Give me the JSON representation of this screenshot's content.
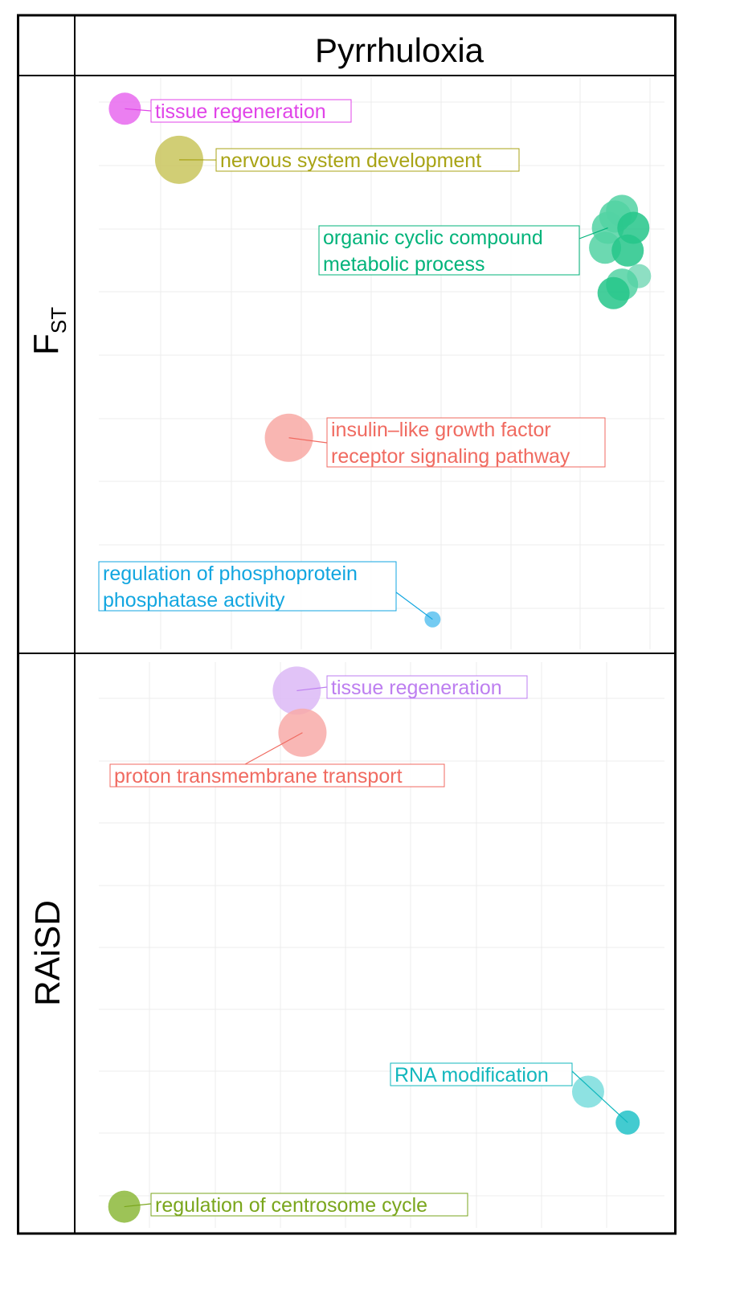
{
  "chart_data": {
    "type": "scatter",
    "title": "Pyrrhuloxia",
    "facets": [
      {
        "strip_label": "F",
        "strip_subscript": "ST",
        "xlim": [
          0,
          100
        ],
        "ylim": [
          0,
          100
        ],
        "grid": true,
        "points": [
          {
            "x": 4.6,
            "y": 95.0,
            "size": 3,
            "color": "#e769ee",
            "cluster": "tissue regeneration"
          },
          {
            "x": 14.2,
            "y": 86.0,
            "size": 5,
            "color": "#c9c55d",
            "cluster": "nervous system development"
          },
          {
            "x": 92.5,
            "y": 77.0,
            "size": 3,
            "color": "#52d2a3",
            "cluster": "organic cyclic compound metabolic process"
          },
          {
            "x": 91.3,
            "y": 76.0,
            "size": 3,
            "color": "#52d2a3",
            "cluster": "organic cyclic compound metabolic process"
          },
          {
            "x": 90.0,
            "y": 74.0,
            "size": 3,
            "color": "#52d2a3",
            "cluster": "organic cyclic compound metabolic process"
          },
          {
            "x": 94.5,
            "y": 74.0,
            "size": 3,
            "color": "#25c58a",
            "cluster": "organic cyclic compound metabolic process"
          },
          {
            "x": 89.5,
            "y": 70.5,
            "size": 3,
            "color": "#52d2a3",
            "cluster": "organic cyclic compound metabolic process"
          },
          {
            "x": 93.5,
            "y": 70.0,
            "size": 3,
            "color": "#25c58a",
            "cluster": "organic cyclic compound metabolic process"
          },
          {
            "x": 95.5,
            "y": 65.5,
            "size": 2,
            "color": "#7ad9b8",
            "cluster": "organic cyclic compound metabolic process"
          },
          {
            "x": 92.5,
            "y": 64.0,
            "size": 3,
            "color": "#52d2a3",
            "cluster": "organic cyclic compound metabolic process"
          },
          {
            "x": 91.0,
            "y": 62.5,
            "size": 3,
            "color": "#25c58a",
            "cluster": "organic cyclic compound metabolic process"
          },
          {
            "x": 33.6,
            "y": 37.0,
            "size": 5,
            "color": "#f8a9a4",
            "cluster": "insulin-like growth factor receptor signaling pathway"
          },
          {
            "x": 59.0,
            "y": 5.0,
            "size": 1,
            "color": "#5cc2f0",
            "cluster": "regulation of phosphoprotein phosphatase activity"
          }
        ],
        "labels": [
          {
            "lines": [
              "tissue regeneration"
            ],
            "color": "#e043e8"
          },
          {
            "lines": [
              "nervous system development"
            ],
            "color": "#a8a314"
          },
          {
            "lines": [
              "organic cyclic compound",
              "metabolic process"
            ],
            "color": "#00b37a"
          },
          {
            "lines": [
              "insulin–like growth factor",
              "receptor signaling pathway"
            ],
            "color": "#f06a60"
          },
          {
            "lines": [
              "regulation of phosphoprotein",
              "phosphatase activity"
            ],
            "color": "#12a6e0"
          }
        ]
      },
      {
        "strip_label": "RAiSD",
        "xlim": [
          0,
          100
        ],
        "ylim": [
          0,
          100
        ],
        "grid": true,
        "points": [
          {
            "x": 35.0,
            "y": 95.5,
            "size": 5,
            "color": "#dcb8f6",
            "cluster": "tissue regeneration"
          },
          {
            "x": 36.0,
            "y": 88.0,
            "size": 5,
            "color": "#f8aaa8",
            "cluster": "proton transmembrane transport"
          },
          {
            "x": 86.5,
            "y": 24.0,
            "size": 3,
            "color": "#7adddd",
            "cluster": "RNA modification"
          },
          {
            "x": 93.5,
            "y": 18.5,
            "size": 2,
            "color": "#22c2c8",
            "cluster": "RNA modification"
          },
          {
            "x": 4.5,
            "y": 3.5,
            "size": 3,
            "color": "#8cb83a",
            "cluster": "regulation of centrosome cycle"
          }
        ],
        "labels": [
          {
            "lines": [
              "tissue regeneration"
            ],
            "color": "#bd7ef0"
          },
          {
            "lines": [
              "proton transmembrane transport"
            ],
            "color": "#f06a60"
          },
          {
            "lines": [
              "RNA modification"
            ],
            "color": "#12b7bd"
          },
          {
            "lines": [
              "regulation of centrosome cycle"
            ],
            "color": "#7aa61c"
          }
        ]
      }
    ]
  }
}
